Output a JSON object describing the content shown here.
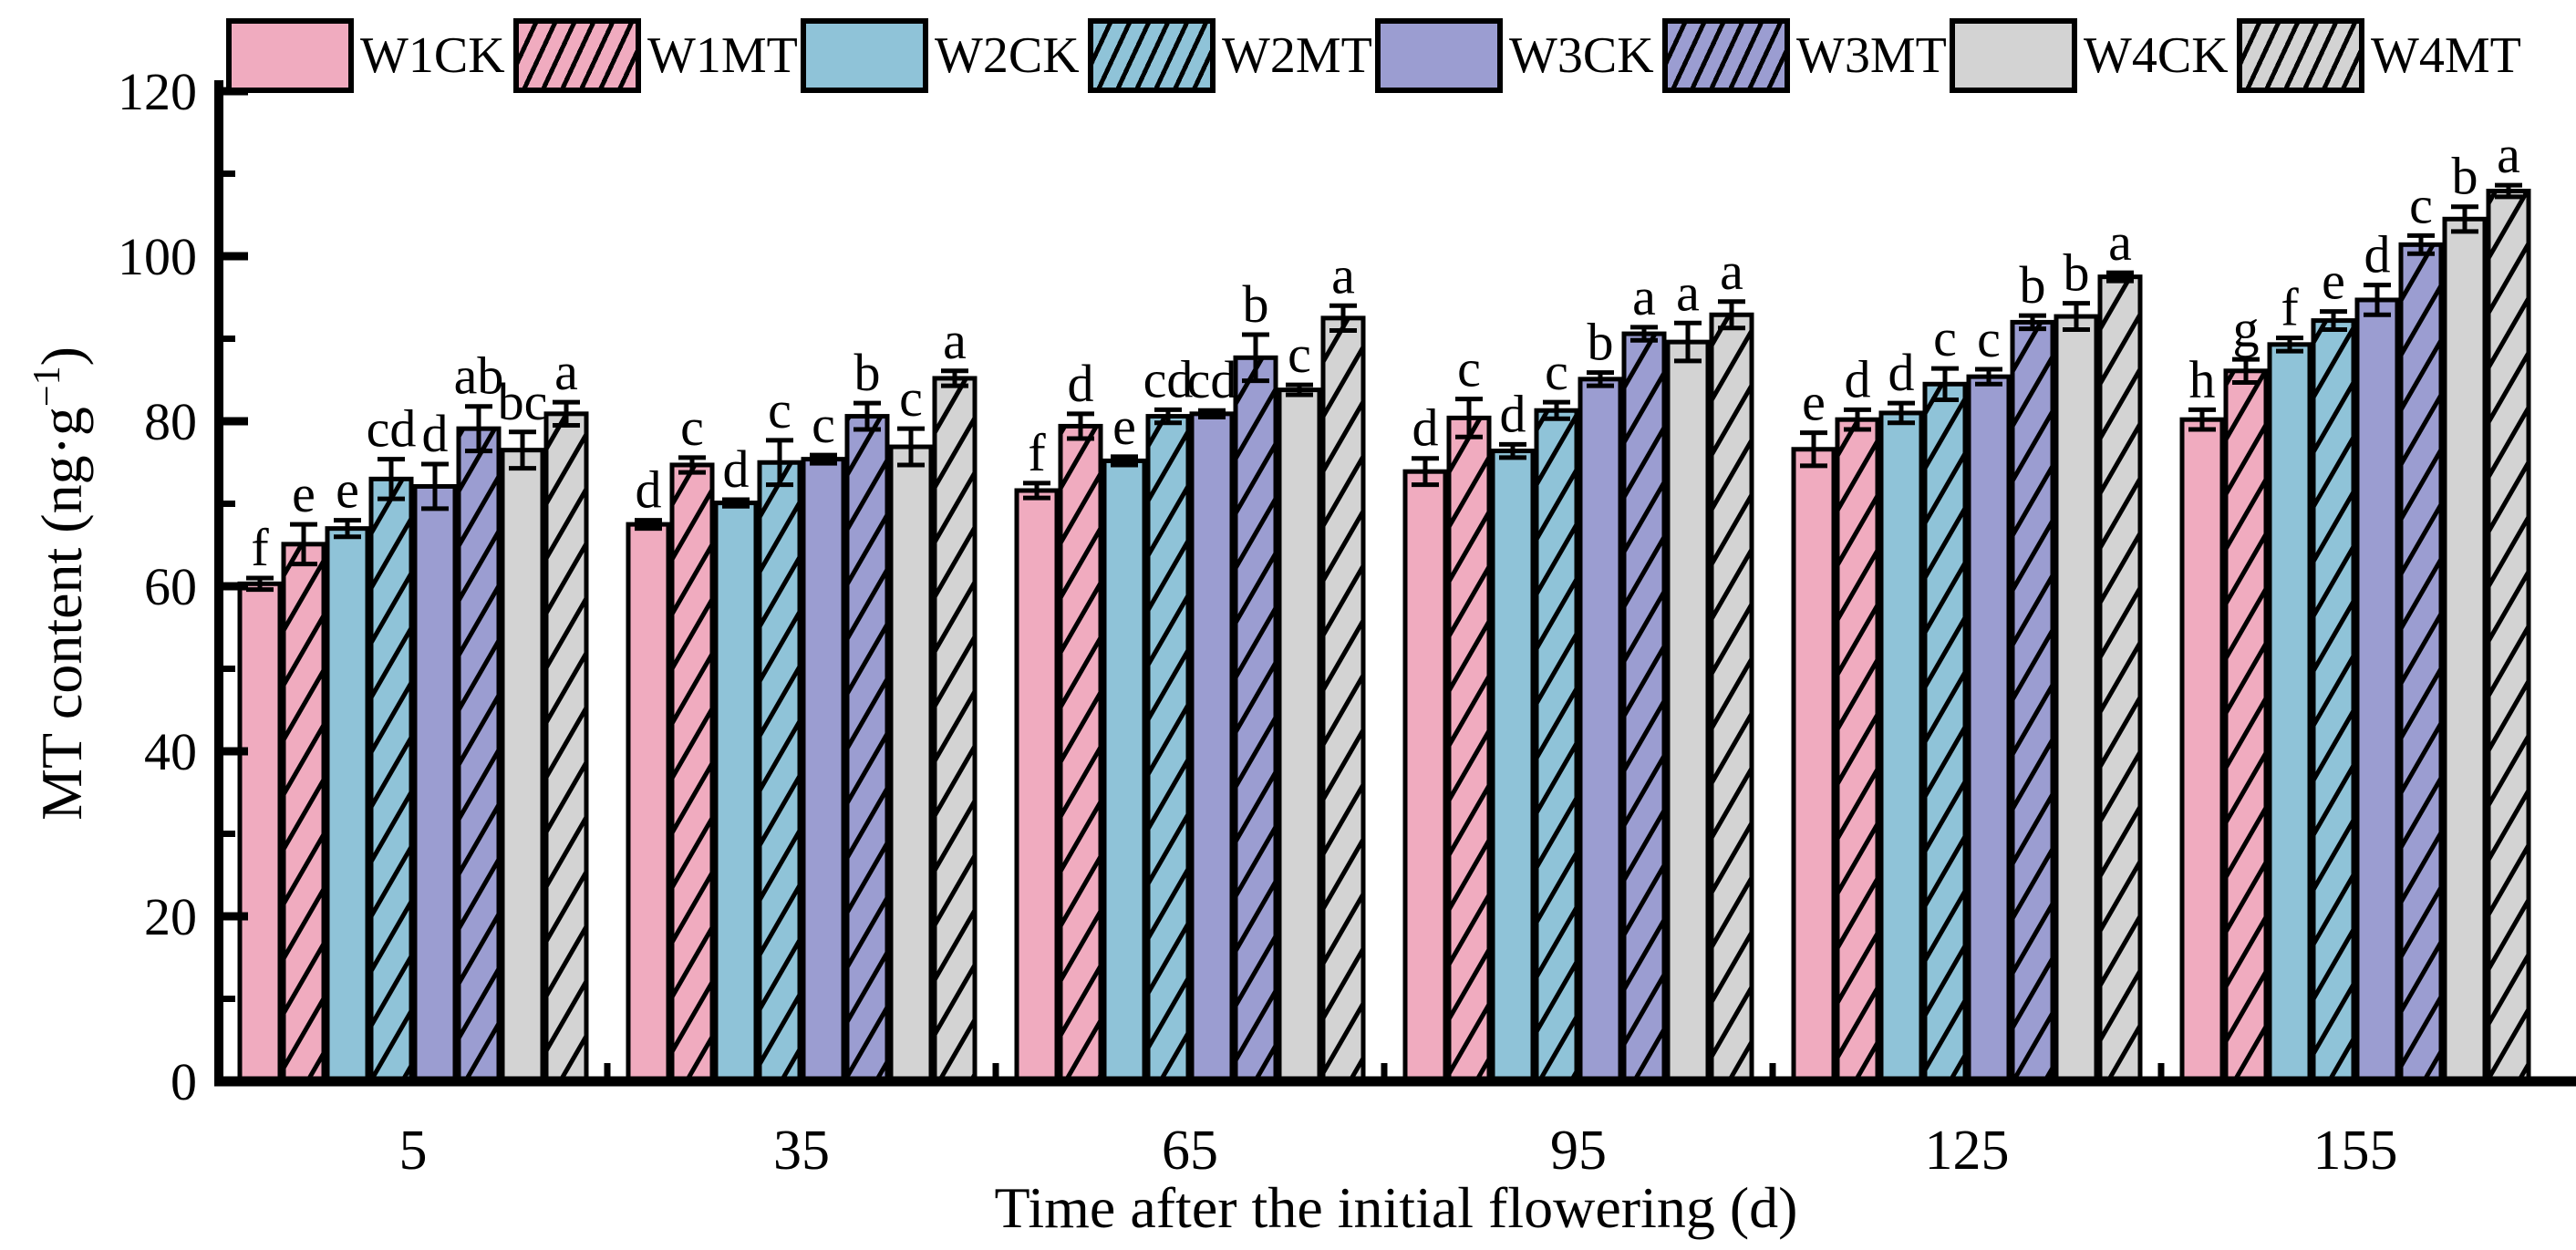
{
  "chart_data": {
    "type": "bar",
    "title": "",
    "xlabel": "Time after the initial flowering (d)",
    "ylabel": {
      "base": "MT content (ng·g",
      "sup": "−1",
      "close": ")"
    },
    "categories": [
      "5",
      "35",
      "65",
      "95",
      "125",
      "155"
    ],
    "y_ticks": [
      0,
      20,
      40,
      60,
      80,
      100,
      120
    ],
    "y_minor_step": 10,
    "ylim": [
      0,
      120
    ],
    "grid": false,
    "legend_position": "top",
    "error_bars": true,
    "colors": {
      "pink": "#F0ABBF",
      "blue": "#8FC3D8",
      "purple": "#9B9DD1",
      "gray": "#D3D3D3",
      "edge": "#000000"
    },
    "series": [
      {
        "name": "W1CK",
        "color": "#F0ABBF",
        "hatch": false,
        "values": [
          60.3,
          67.5,
          71.6,
          73.9,
          76.6,
          80.2
        ],
        "errors": [
          0.7,
          0.5,
          0.9,
          1.6,
          2.0,
          1.2
        ],
        "letters": [
          "f",
          "d",
          "f",
          "d",
          "e",
          "h"
        ]
      },
      {
        "name": "W1MT",
        "color": "#F0ABBF",
        "hatch": true,
        "values": [
          65.1,
          74.7,
          79.4,
          80.4,
          80.2,
          86.1
        ],
        "errors": [
          2.4,
          0.9,
          1.5,
          2.3,
          1.2,
          1.4
        ],
        "letters": [
          "e",
          "c",
          "d",
          "c",
          "d",
          "g"
        ]
      },
      {
        "name": "W2CK",
        "color": "#8FC3D8",
        "hatch": false,
        "values": [
          67.0,
          70.1,
          75.2,
          76.4,
          81.0,
          89.3
        ],
        "errors": [
          1.0,
          0.4,
          0.5,
          0.8,
          1.2,
          0.8
        ],
        "letters": [
          "e",
          "d",
          "e",
          "d",
          "d",
          "f"
        ]
      },
      {
        "name": "W2MT",
        "color": "#8FC3D8",
        "hatch": true,
        "values": [
          73.0,
          75.0,
          80.6,
          81.3,
          84.5,
          92.2
        ],
        "errors": [
          2.4,
          2.7,
          0.8,
          1.0,
          1.9,
          1.1
        ],
        "letters": [
          "cd",
          "c",
          "cd",
          "c",
          "c",
          "e"
        ]
      },
      {
        "name": "W3CK",
        "color": "#9B9DD1",
        "hatch": false,
        "values": [
          72.1,
          75.4,
          80.9,
          85.1,
          85.4,
          94.7
        ],
        "errors": [
          2.7,
          0.5,
          0.4,
          0.8,
          0.9,
          1.8
        ],
        "letters": [
          "d",
          "c",
          "cd",
          "b",
          "c",
          "d"
        ]
      },
      {
        "name": "W3MT",
        "color": "#9B9DD1",
        "hatch": true,
        "values": [
          79.1,
          80.6,
          87.7,
          90.6,
          92.0,
          101.4
        ],
        "errors": [
          2.7,
          1.6,
          2.8,
          0.8,
          0.8,
          1.1
        ],
        "letters": [
          "ab",
          "b",
          "b",
          "a",
          "b",
          "c"
        ]
      },
      {
        "name": "W4CK",
        "color": "#D3D3D3",
        "hatch": false,
        "values": [
          76.5,
          76.9,
          83.8,
          89.6,
          92.7,
          104.5
        ],
        "errors": [
          2.2,
          2.2,
          0.6,
          2.3,
          1.6,
          1.5
        ],
        "letters": [
          "bc",
          "c",
          "c",
          "a",
          "b",
          "b"
        ]
      },
      {
        "name": "W4MT",
        "color": "#D3D3D3",
        "hatch": true,
        "values": [
          80.9,
          85.2,
          92.5,
          92.9,
          97.5,
          107.9
        ],
        "errors": [
          1.4,
          0.9,
          1.5,
          1.6,
          0.5,
          0.7
        ],
        "letters": [
          "a",
          "a",
          "a",
          "a",
          "a",
          "a"
        ]
      }
    ]
  }
}
